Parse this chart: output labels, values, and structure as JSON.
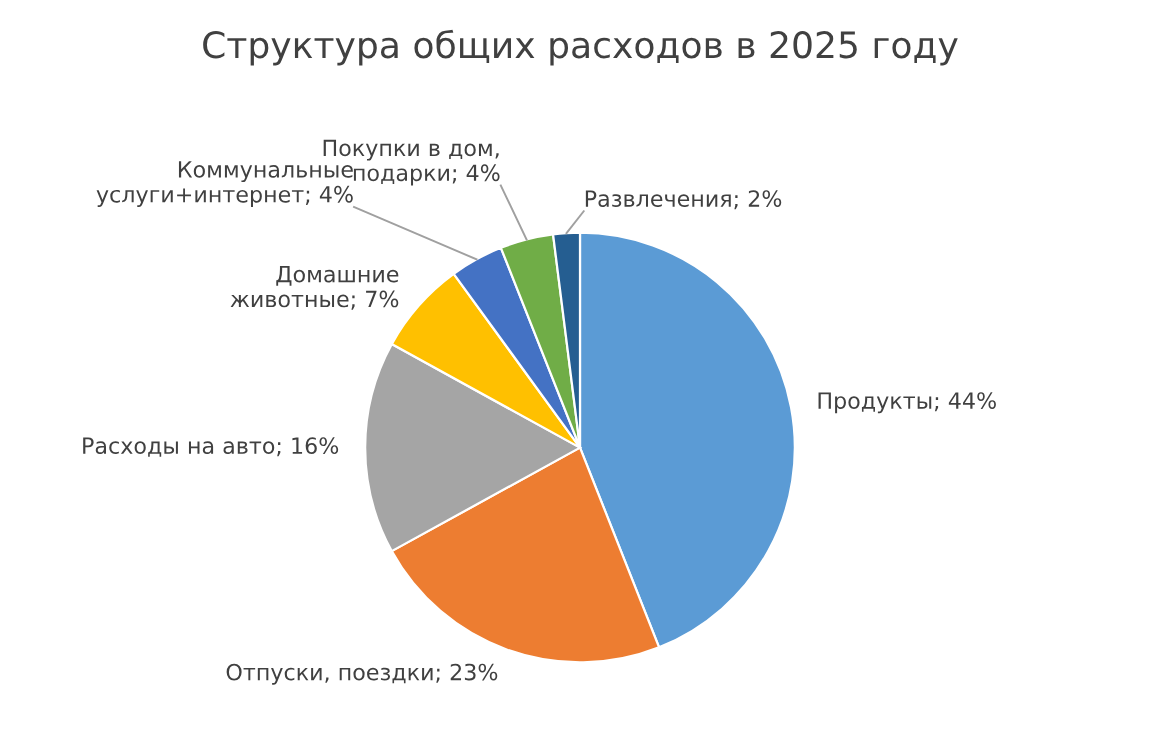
{
  "chart_data": {
    "type": "pie",
    "title": "Структура общих расходов в 2025 году",
    "categories": [
      "Продукты",
      "Отпуски, поездки",
      "Расходы на авто",
      "Домашние\nживотные",
      "Коммунальные\nуслуги+интернет",
      "Покупки в дом,\nподарки",
      "Развлечения"
    ],
    "values": [
      44,
      23,
      16,
      7,
      4,
      4,
      2
    ],
    "value_labels": [
      "44%",
      "23%",
      "16%",
      "7%",
      "4%",
      "4%",
      "2%"
    ],
    "colors": [
      "#5b9bd5",
      "#ed7d31",
      "#a5a5a5",
      "#ffc000",
      "#4472c4",
      "#70ad47",
      "#255e91"
    ],
    "legend": false
  }
}
